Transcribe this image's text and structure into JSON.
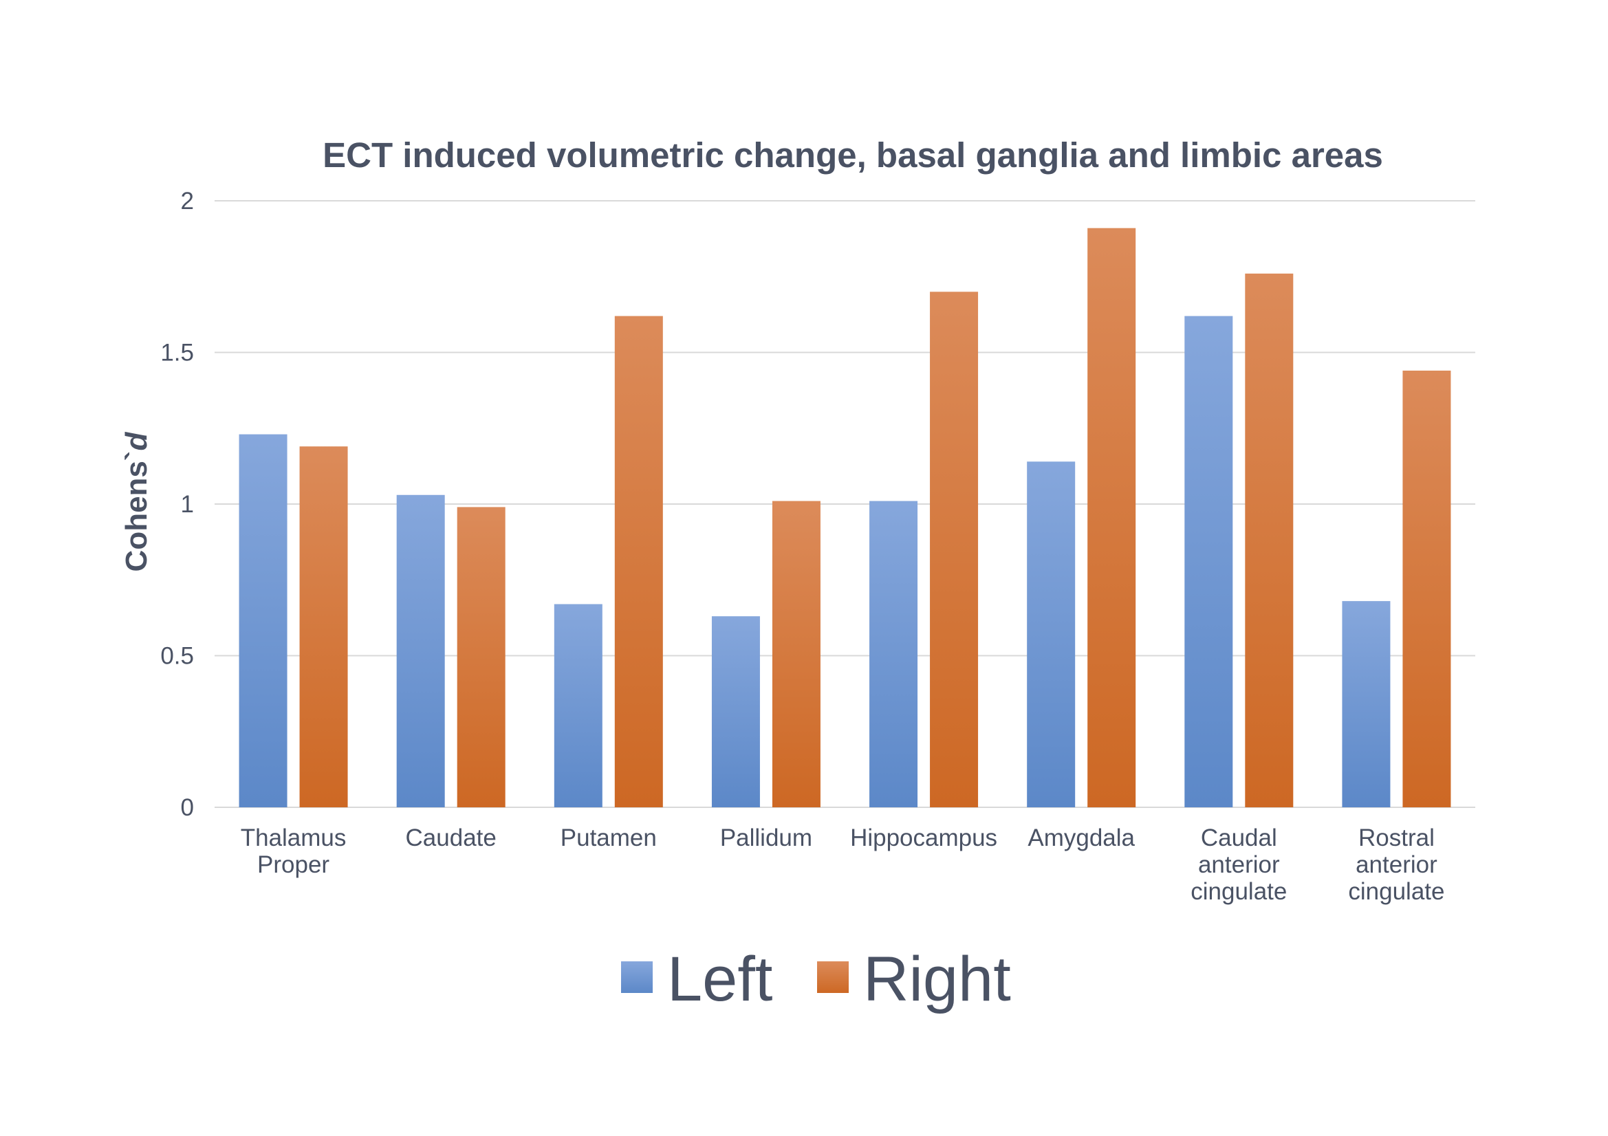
{
  "chart_data": {
    "type": "bar",
    "title": "ECT induced volumetric change, basal ganglia and limbic areas",
    "xlabel": "",
    "ylabel_prefix": "Cohens`",
    "ylabel_italic": "d",
    "ylim": [
      0,
      2
    ],
    "yticks": [
      "0",
      "0.5",
      "1",
      "1.5",
      "2"
    ],
    "ytick_values": [
      0,
      0.5,
      1,
      1.5,
      2
    ],
    "grid": true,
    "legend_position": "bottom",
    "categories": [
      [
        "Thalamus",
        "Proper"
      ],
      [
        "Caudate"
      ],
      [
        "Putamen"
      ],
      [
        "Pallidum"
      ],
      [
        "Hippocampus"
      ],
      [
        "Amygdala"
      ],
      [
        "Caudal",
        "anterior",
        "cingulate"
      ],
      [
        "Rostral",
        "anterior",
        "cingulate"
      ]
    ],
    "series": [
      {
        "name": "Left",
        "color": "#5b8bd0",
        "values": [
          1.23,
          1.03,
          0.67,
          0.63,
          1.01,
          1.14,
          1.62,
          0.68
        ]
      },
      {
        "name": "Right",
        "color": "#d87330",
        "values": [
          1.19,
          0.99,
          1.62,
          1.01,
          1.7,
          1.91,
          1.76,
          1.44
        ]
      }
    ]
  }
}
